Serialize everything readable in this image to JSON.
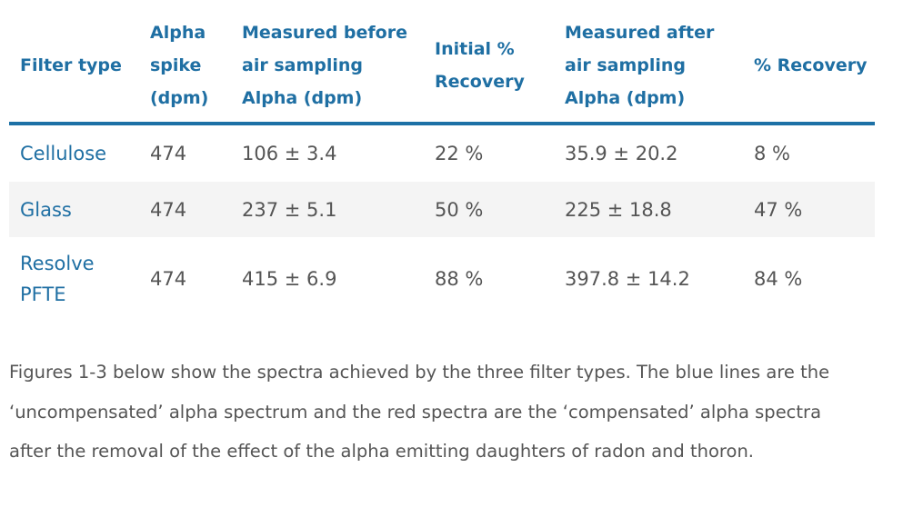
{
  "table": {
    "headers": [
      "Filter type",
      "Alpha spike (dpm)",
      "Measured before air sampling Alpha (dpm)",
      "Initial % Recovery",
      "Measured after air sampling Alpha (dpm)",
      "% Recovery"
    ],
    "rows": [
      [
        "Cellulose",
        "474",
        "106 ± 3.4",
        "22 %",
        "35.9 ± 20.2",
        "8 %"
      ],
      [
        "Glass",
        "474",
        "237 ± 5.1",
        "50 %",
        "225 ± 18.8",
        "47 %"
      ],
      [
        "Resolve PFTE",
        "474",
        "415 ± 6.9",
        "88 %",
        "397.8 ± 14.2",
        "84 %"
      ]
    ]
  },
  "caption": "Figures 1-3 below show the spectra achieved by the three filter types. The blue lines are the ‘uncompensated’ alpha spectrum and the red spectra are the ‘compensated’ alpha spectra after the removal of the effect of the alpha emitting daughters of radon and thoron.",
  "colors": {
    "header_text": "#1f6fa3",
    "header_rule": "#1d71a6",
    "body_text": "#555555",
    "stripe": "#f4f4f4"
  }
}
